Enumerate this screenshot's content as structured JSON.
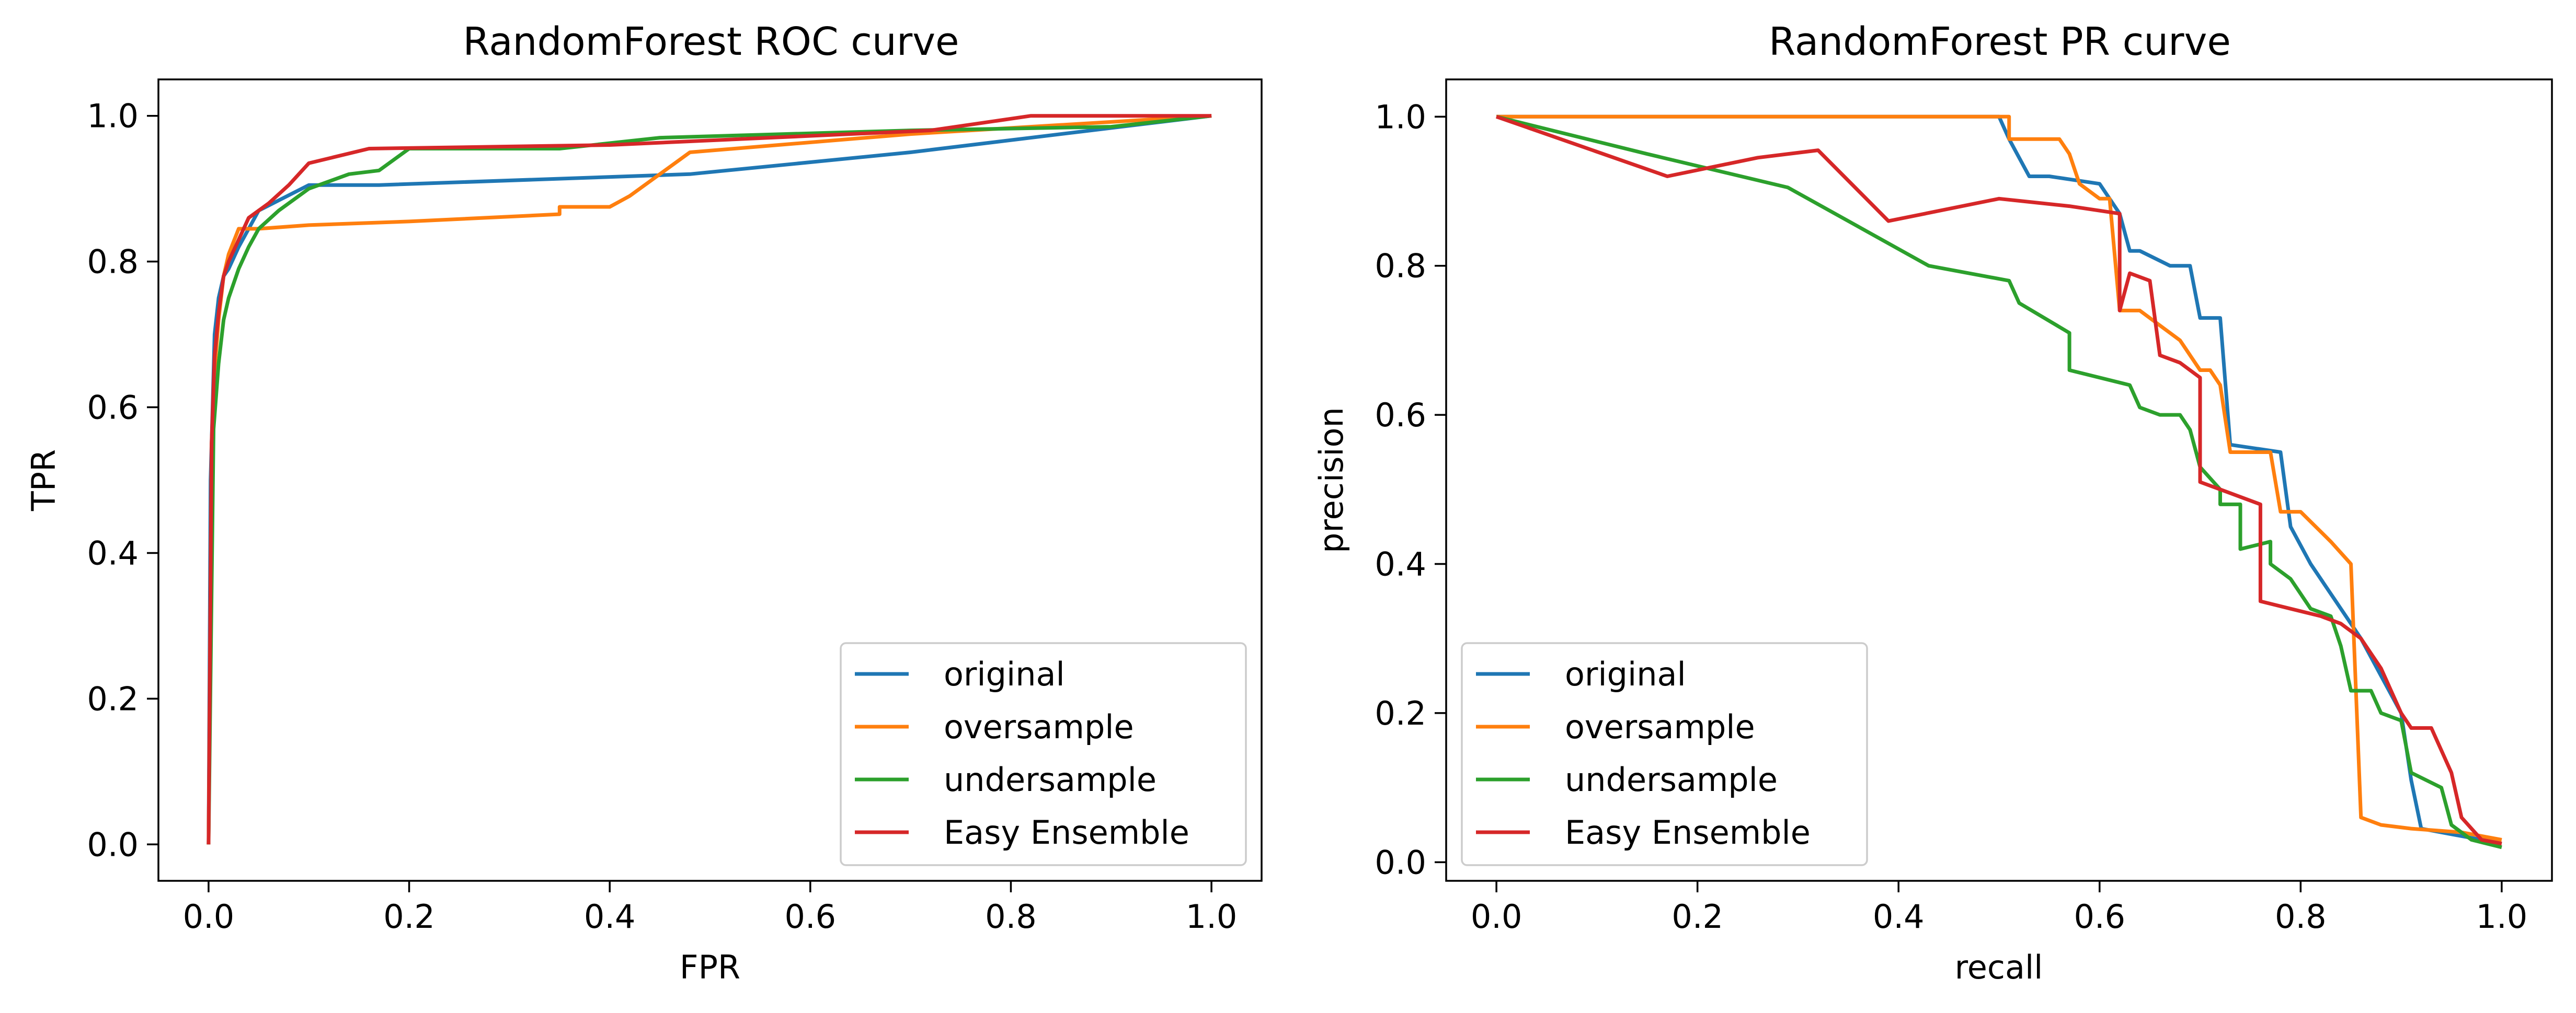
{
  "chart_data": [
    {
      "type": "line",
      "title": "RandomForest ROC curve",
      "xlabel": "FPR",
      "ylabel": "TPR",
      "xlim": [
        -0.05,
        1.05
      ],
      "ylim": [
        -0.05,
        1.05
      ],
      "xticks": [
        "0.0",
        "0.2",
        "0.4",
        "0.6",
        "0.8",
        "1.0"
      ],
      "yticks": [
        "0.0",
        "0.2",
        "0.4",
        "0.6",
        "0.8",
        "1.0"
      ],
      "grid": false,
      "legend": "lower-right",
      "series": [
        {
          "name": "original",
          "color": "#1f77b4",
          "x": [
            0,
            0.002,
            0.004,
            0.006,
            0.01,
            0.015,
            0.02,
            0.03,
            0.05,
            0.1,
            0.17,
            0.48,
            0.7,
            1.0
          ],
          "y": [
            0,
            0.5,
            0.6,
            0.7,
            0.75,
            0.78,
            0.79,
            0.82,
            0.87,
            0.905,
            0.905,
            0.92,
            0.95,
            1.0
          ]
        },
        {
          "name": "oversample",
          "color": "#ff7f0e",
          "x": [
            0,
            0.003,
            0.006,
            0.01,
            0.015,
            0.02,
            0.03,
            0.05,
            0.1,
            0.2,
            0.35,
            0.35,
            0.4,
            0.42,
            0.48,
            0.7,
            1.0
          ],
          "y": [
            0,
            0.55,
            0.65,
            0.72,
            0.78,
            0.81,
            0.845,
            0.845,
            0.85,
            0.855,
            0.865,
            0.875,
            0.875,
            0.89,
            0.95,
            0.975,
            1.0
          ]
        },
        {
          "name": "undersample",
          "color": "#2ca02c",
          "x": [
            0,
            0.005,
            0.01,
            0.015,
            0.02,
            0.03,
            0.04,
            0.05,
            0.07,
            0.1,
            0.14,
            0.17,
            0.2,
            0.25,
            0.35,
            0.45,
            0.7,
            0.9,
            1.0
          ],
          "y": [
            0,
            0.57,
            0.66,
            0.72,
            0.75,
            0.79,
            0.82,
            0.845,
            0.87,
            0.9,
            0.92,
            0.925,
            0.955,
            0.955,
            0.955,
            0.97,
            0.98,
            0.985,
            1.0
          ]
        },
        {
          "name": "Easy Ensemble",
          "color": "#d62728",
          "x": [
            0,
            0.003,
            0.006,
            0.01,
            0.015,
            0.02,
            0.03,
            0.04,
            0.06,
            0.08,
            0.1,
            0.16,
            0.4,
            0.72,
            0.82,
            1.0
          ],
          "y": [
            0,
            0.55,
            0.67,
            0.73,
            0.78,
            0.8,
            0.83,
            0.86,
            0.88,
            0.905,
            0.935,
            0.955,
            0.96,
            0.98,
            1.0,
            1.0
          ]
        }
      ]
    },
    {
      "type": "line",
      "title": "RandomForest PR curve",
      "xlabel": "recall",
      "ylabel": "precision",
      "xlim": [
        -0.05,
        1.05
      ],
      "ylim": [
        -0.025,
        1.05
      ],
      "xticks": [
        "0.0",
        "0.2",
        "0.4",
        "0.6",
        "0.8",
        "1.0"
      ],
      "yticks": [
        "0.0",
        "0.2",
        "0.4",
        "0.6",
        "0.8",
        "1.0"
      ],
      "grid": false,
      "legend": "lower-left",
      "series": [
        {
          "name": "original",
          "color": "#1f77b4",
          "x": [
            0,
            0.5,
            0.51,
            0.53,
            0.55,
            0.6,
            0.62,
            0.63,
            0.64,
            0.67,
            0.69,
            0.7,
            0.72,
            0.73,
            0.78,
            0.79,
            0.81,
            0.86,
            0.88,
            0.9,
            0.91,
            0.92,
            1.0
          ],
          "y": [
            1.0,
            1.0,
            0.97,
            0.92,
            0.92,
            0.91,
            0.87,
            0.82,
            0.82,
            0.8,
            0.8,
            0.73,
            0.73,
            0.56,
            0.55,
            0.45,
            0.4,
            0.3,
            0.25,
            0.2,
            0.11,
            0.045,
            0.025
          ]
        },
        {
          "name": "oversample",
          "color": "#ff7f0e",
          "x": [
            0,
            0.51,
            0.51,
            0.56,
            0.57,
            0.58,
            0.6,
            0.61,
            0.62,
            0.64,
            0.66,
            0.68,
            0.7,
            0.71,
            0.72,
            0.73,
            0.77,
            0.78,
            0.8,
            0.83,
            0.85,
            0.86,
            0.88,
            0.91,
            0.96,
            1.0
          ],
          "y": [
            1.0,
            1.0,
            0.97,
            0.97,
            0.95,
            0.91,
            0.89,
            0.89,
            0.74,
            0.74,
            0.72,
            0.7,
            0.66,
            0.66,
            0.64,
            0.55,
            0.55,
            0.47,
            0.47,
            0.43,
            0.4,
            0.06,
            0.05,
            0.045,
            0.04,
            0.03
          ]
        },
        {
          "name": "undersample",
          "color": "#2ca02c",
          "x": [
            0,
            0.15,
            0.29,
            0.43,
            0.51,
            0.52,
            0.57,
            0.57,
            0.63,
            0.64,
            0.66,
            0.68,
            0.69,
            0.7,
            0.72,
            0.72,
            0.74,
            0.74,
            0.77,
            0.77,
            0.79,
            0.8,
            0.81,
            0.83,
            0.84,
            0.85,
            0.87,
            0.88,
            0.9,
            0.91,
            0.94,
            0.95,
            0.97,
            1.0
          ],
          "y": [
            1.0,
            0.95,
            0.905,
            0.8,
            0.78,
            0.75,
            0.71,
            0.66,
            0.64,
            0.61,
            0.6,
            0.6,
            0.58,
            0.53,
            0.5,
            0.48,
            0.48,
            0.42,
            0.43,
            0.4,
            0.38,
            0.36,
            0.34,
            0.33,
            0.29,
            0.23,
            0.23,
            0.2,
            0.19,
            0.12,
            0.1,
            0.05,
            0.03,
            0.02
          ]
        },
        {
          "name": "Easy Ensemble",
          "color": "#d62728",
          "x": [
            0,
            0.17,
            0.26,
            0.32,
            0.39,
            0.5,
            0.57,
            0.62,
            0.62,
            0.63,
            0.65,
            0.66,
            0.68,
            0.7,
            0.7,
            0.72,
            0.76,
            0.76,
            0.79,
            0.82,
            0.84,
            0.85,
            0.86,
            0.87,
            0.88,
            0.9,
            0.91,
            0.93,
            0.95,
            0.96,
            0.98,
            1.0
          ],
          "y": [
            1.0,
            0.92,
            0.945,
            0.955,
            0.86,
            0.89,
            0.88,
            0.87,
            0.74,
            0.79,
            0.78,
            0.68,
            0.67,
            0.65,
            0.51,
            0.5,
            0.48,
            0.35,
            0.34,
            0.33,
            0.32,
            0.31,
            0.3,
            0.28,
            0.26,
            0.2,
            0.18,
            0.18,
            0.12,
            0.06,
            0.03,
            0.025
          ]
        }
      ]
    }
  ]
}
